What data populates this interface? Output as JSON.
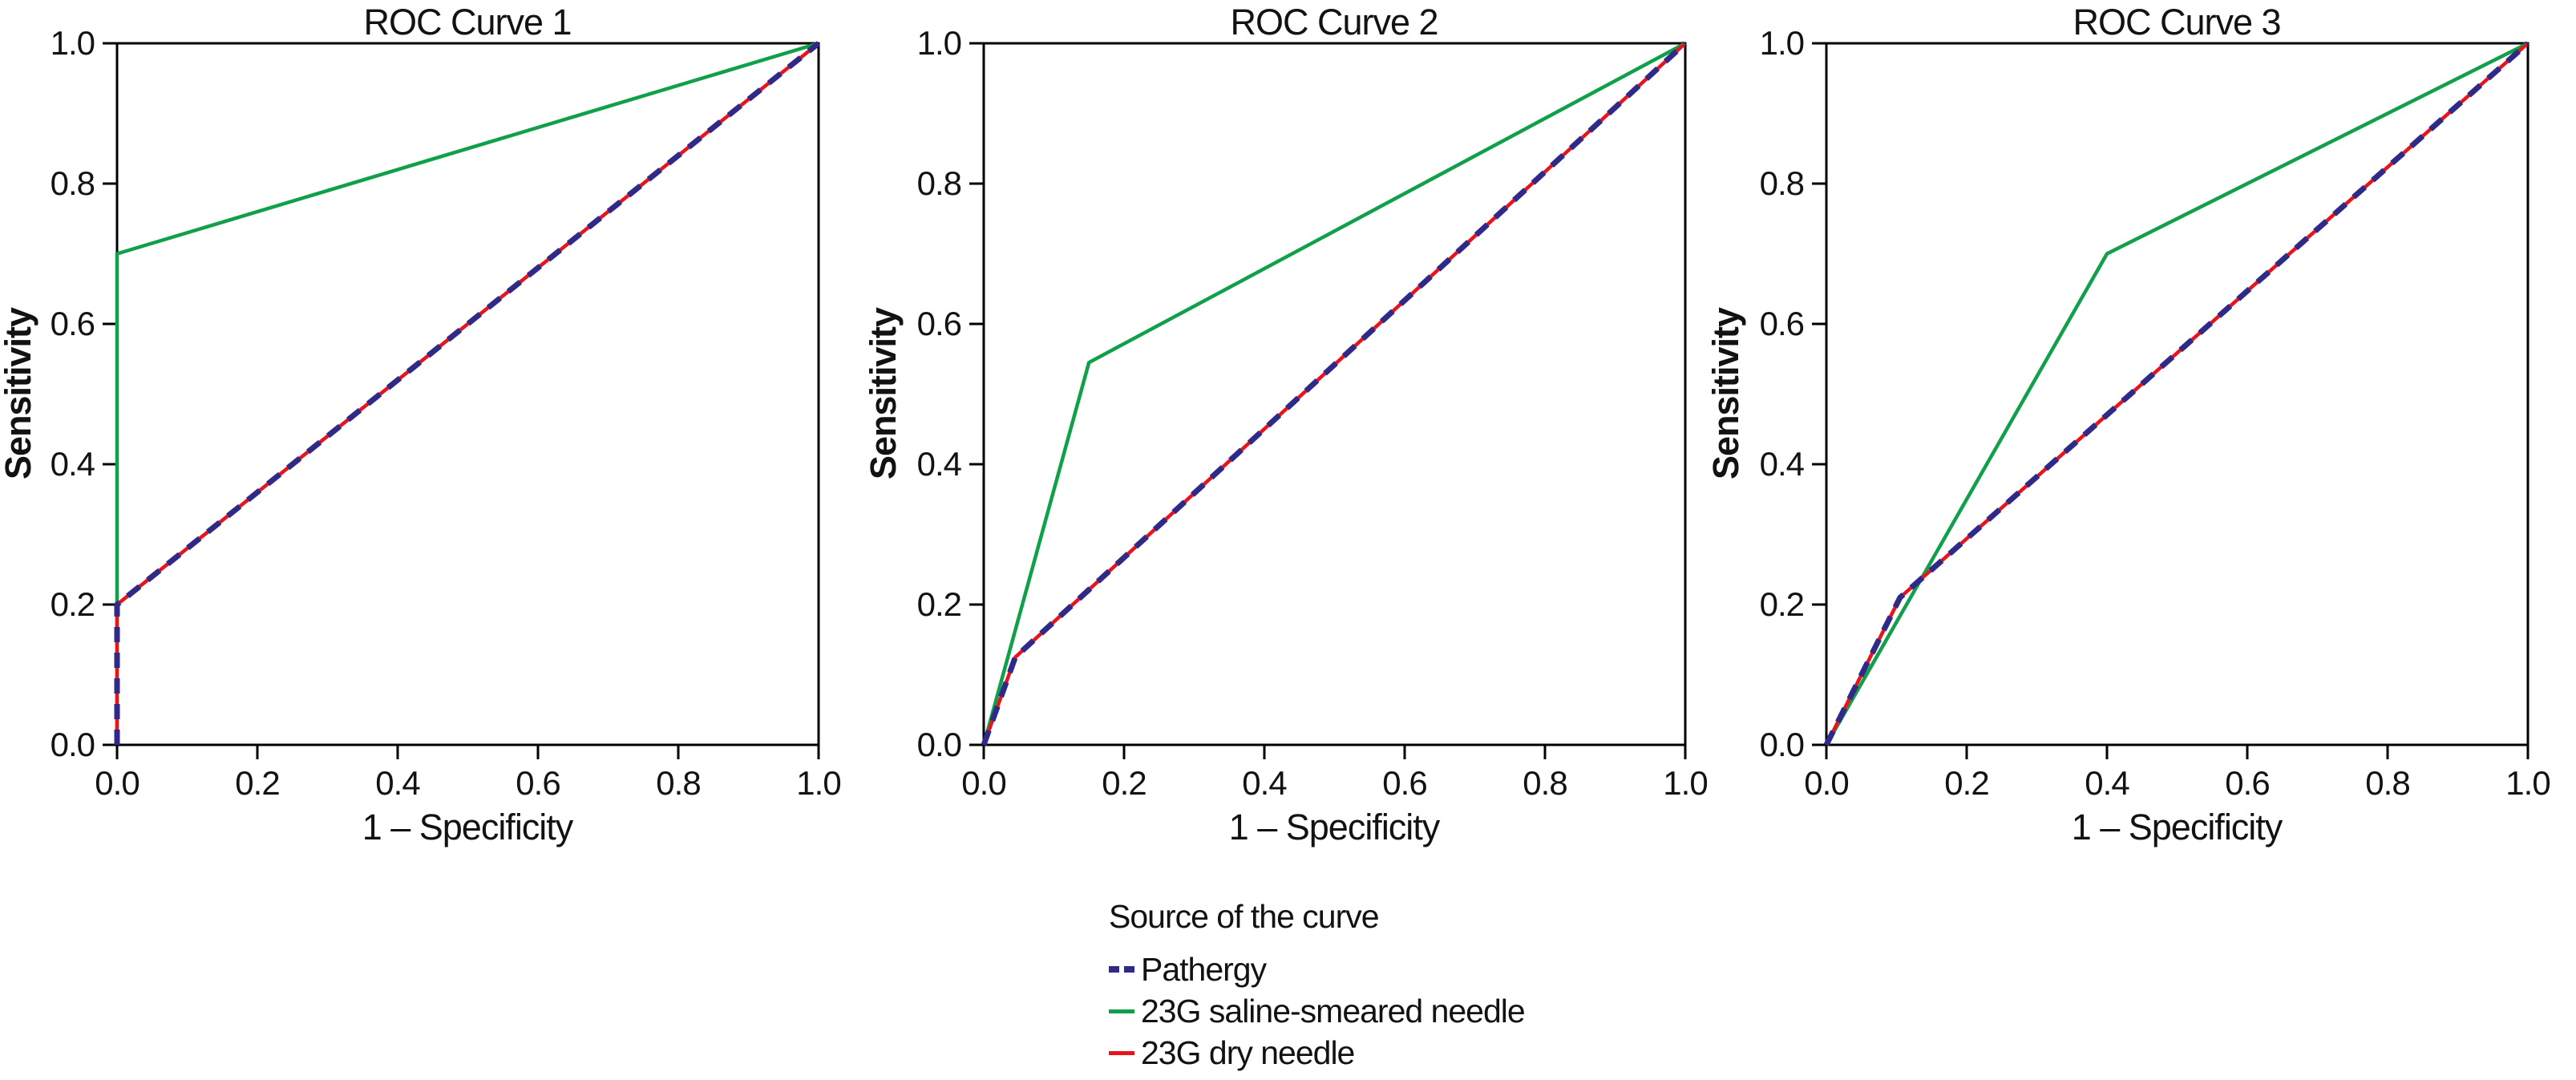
{
  "figure": {
    "legend": {
      "title": "Source of the curve",
      "items": [
        {
          "id": "pathergy",
          "label": "Pathergy",
          "color": "#2F2A87",
          "dashed": true
        },
        {
          "id": "saline",
          "label": "23G saline-smeared needle",
          "color": "#11A04A",
          "dashed": false
        },
        {
          "id": "dry",
          "label": "23G dry needle",
          "color": "#E8131D",
          "dashed": false
        }
      ]
    },
    "colors": {
      "axis": "#000000",
      "text": "#121212",
      "pathergy_blue": "#2F2A87",
      "saline_green": "#11A04A",
      "dry_red": "#E8131D"
    }
  },
  "chart_data": [
    {
      "type": "line",
      "title": "ROC Curve 1",
      "xlabel": "1 – Specificity",
      "ylabel": "Sensitivity",
      "xlim": [
        0,
        1
      ],
      "ylim": [
        0,
        1
      ],
      "grid": false,
      "legend_position": "below-figure",
      "x_ticks": [
        "0.0",
        "0.2",
        "0.4",
        "0.6",
        "0.8",
        "1.0"
      ],
      "y_ticks": [
        "0.0",
        "0.2",
        "0.4",
        "0.6",
        "0.8",
        "1.0"
      ],
      "series": [
        {
          "id": "saline",
          "name": "23G saline-smeared needle",
          "color": "#11A04A",
          "dashed": false,
          "points": [
            [
              0,
              0
            ],
            [
              0,
              0.7
            ],
            [
              1,
              1
            ]
          ]
        },
        {
          "id": "dry",
          "name": "23G dry needle",
          "color": "#E8131D",
          "dashed": false,
          "points": [
            [
              0,
              0
            ],
            [
              0,
              0.2
            ],
            [
              1,
              1
            ]
          ]
        },
        {
          "id": "pathergy",
          "name": "Pathergy",
          "color": "#2F2A87",
          "dashed": true,
          "points": [
            [
              0,
              0
            ],
            [
              0,
              0.2
            ],
            [
              1,
              1
            ]
          ]
        }
      ]
    },
    {
      "type": "line",
      "title": "ROC Curve 2",
      "xlabel": "1 – Specificity",
      "ylabel": "Sensitivity",
      "xlim": [
        0,
        1
      ],
      "ylim": [
        0,
        1
      ],
      "grid": false,
      "legend_position": "below-figure",
      "x_ticks": [
        "0.0",
        "0.2",
        "0.4",
        "0.6",
        "0.8",
        "1.0"
      ],
      "y_ticks": [
        "0.0",
        "0.2",
        "0.4",
        "0.6",
        "0.8",
        "1.0"
      ],
      "series": [
        {
          "id": "saline",
          "name": "23G saline-smeared needle",
          "color": "#11A04A",
          "dashed": false,
          "points": [
            [
              0,
              0
            ],
            [
              0.15,
              0.545
            ],
            [
              1,
              1
            ]
          ]
        },
        {
          "id": "dry",
          "name": "23G dry needle",
          "color": "#E8131D",
          "dashed": false,
          "points": [
            [
              0,
              0
            ],
            [
              0.045,
              0.125
            ],
            [
              1,
              1
            ]
          ]
        },
        {
          "id": "pathergy",
          "name": "Pathergy",
          "color": "#2F2A87",
          "dashed": true,
          "points": [
            [
              0,
              0
            ],
            [
              0.045,
              0.125
            ],
            [
              1,
              1
            ]
          ]
        }
      ]
    },
    {
      "type": "line",
      "title": "ROC Curve 3",
      "xlabel": "1 – Specificity",
      "ylabel": "Sensitivity",
      "xlim": [
        0,
        1
      ],
      "ylim": [
        0,
        1
      ],
      "grid": false,
      "legend_position": "below-figure",
      "x_ticks": [
        "0.0",
        "0.2",
        "0.4",
        "0.6",
        "0.8",
        "1.0"
      ],
      "y_ticks": [
        "0.0",
        "0.2",
        "0.4",
        "0.6",
        "0.8",
        "1.0"
      ],
      "series": [
        {
          "id": "saline",
          "name": "23G saline-smeared needle",
          "color": "#11A04A",
          "dashed": false,
          "points": [
            [
              0,
              0
            ],
            [
              0.4,
              0.7
            ],
            [
              1,
              1
            ]
          ]
        },
        {
          "id": "dry",
          "name": "23G dry needle",
          "color": "#E8131D",
          "dashed": false,
          "points": [
            [
              0,
              0
            ],
            [
              0.105,
              0.21
            ],
            [
              1,
              1
            ]
          ]
        },
        {
          "id": "pathergy",
          "name": "Pathergy",
          "color": "#2F2A87",
          "dashed": true,
          "points": [
            [
              0,
              0
            ],
            [
              0.105,
              0.21
            ],
            [
              1,
              1
            ]
          ]
        }
      ]
    }
  ]
}
